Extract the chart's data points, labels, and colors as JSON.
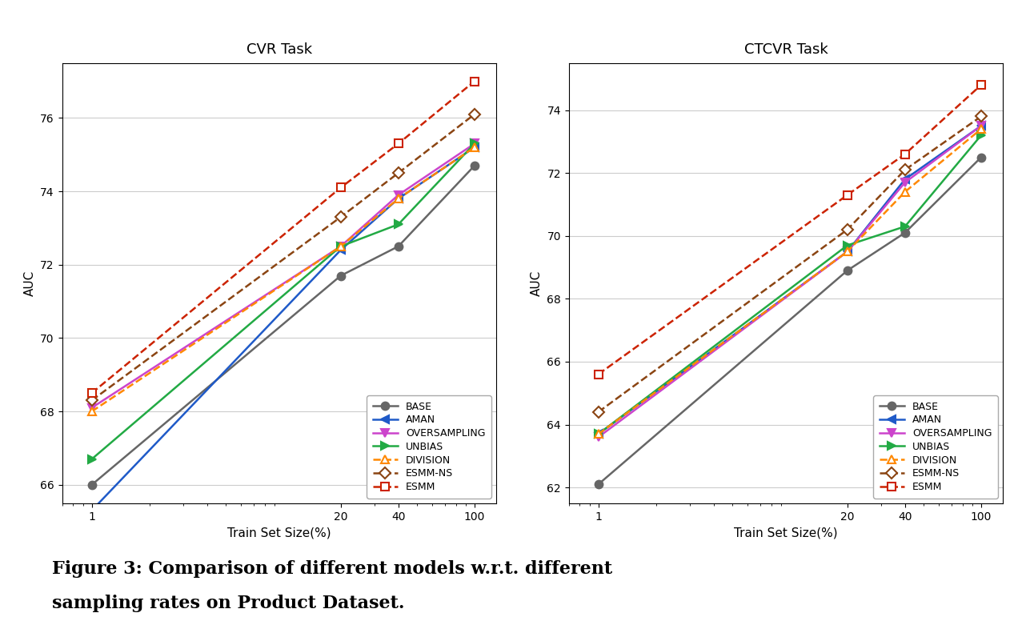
{
  "x": [
    1,
    20,
    40,
    100
  ],
  "cvr": {
    "BASE": [
      66.0,
      71.7,
      72.5,
      74.7
    ],
    "AMAN": [
      65.3,
      72.4,
      73.8,
      75.2
    ],
    "OVERSAMPLING": [
      68.1,
      72.5,
      73.9,
      75.3
    ],
    "UNBIAS": [
      66.7,
      72.5,
      73.1,
      75.3
    ],
    "DIVISION": [
      68.0,
      72.5,
      73.8,
      75.2
    ],
    "ESMM-NS": [
      68.3,
      73.3,
      74.5,
      76.1
    ],
    "ESMM": [
      68.5,
      74.1,
      75.3,
      77.0
    ]
  },
  "ctcvr": {
    "BASE": [
      62.1,
      68.9,
      70.1,
      72.5
    ],
    "AMAN": [
      63.7,
      69.5,
      71.8,
      73.5
    ],
    "OVERSAMPLING": [
      63.6,
      69.5,
      71.7,
      73.5
    ],
    "UNBIAS": [
      63.7,
      69.7,
      70.3,
      73.2
    ],
    "DIVISION": [
      63.7,
      69.5,
      71.4,
      73.4
    ],
    "ESMM-NS": [
      64.4,
      70.2,
      72.1,
      73.8
    ],
    "ESMM": [
      65.6,
      71.3,
      72.6,
      74.8
    ]
  },
  "styles": {
    "BASE": {
      "color": "#666666",
      "marker": "o",
      "linestyle": "-",
      "dashed": false
    },
    "AMAN": {
      "color": "#1f5ac8",
      "marker": "<",
      "linestyle": "-",
      "dashed": false
    },
    "OVERSAMPLING": {
      "color": "#cc44cc",
      "marker": "v",
      "linestyle": "-",
      "dashed": false
    },
    "UNBIAS": {
      "color": "#22aa44",
      "marker": ">",
      "linestyle": "-",
      "dashed": false
    },
    "DIVISION": {
      "color": "#ff8800",
      "marker": "^",
      "linestyle": "--",
      "dashed": true
    },
    "ESMM-NS": {
      "color": "#8B4513",
      "marker": "D",
      "linestyle": "--",
      "dashed": true
    },
    "ESMM": {
      "color": "#cc2200",
      "marker": "s",
      "linestyle": "--",
      "dashed": true
    }
  },
  "cvr_ylim": [
    65.5,
    77.5
  ],
  "ctcvr_ylim": [
    61.5,
    75.5
  ],
  "cvr_yticks": [
    66,
    68,
    70,
    72,
    74,
    76
  ],
  "ctcvr_yticks": [
    62,
    64,
    66,
    68,
    70,
    72,
    74
  ],
  "xlabel": "Train Set Size(%)",
  "ylabel": "AUC",
  "cvr_title": "CVR Task",
  "ctcvr_title": "CTCVR Task",
  "legend_order": [
    "BASE",
    "AMAN",
    "OVERSAMPLING",
    "UNBIAS",
    "DIVISION",
    "ESMM-NS",
    "ESMM"
  ],
  "caption": "Figure 3: Comparison of different models w.r.t. different\nsampling rates on Product Dataset.",
  "background": "#ffffff"
}
